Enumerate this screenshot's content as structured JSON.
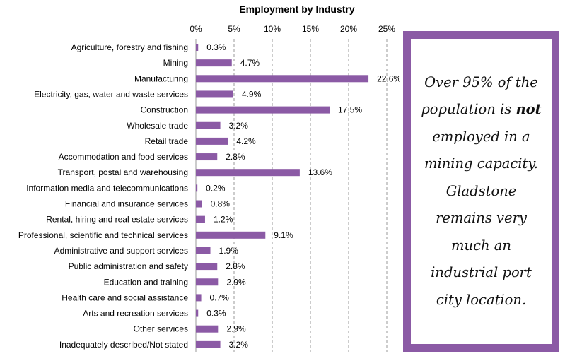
{
  "chart_data": {
    "type": "bar",
    "orientation": "horizontal",
    "title": "Employment by Industry",
    "categories": [
      "Agriculture, forestry and fishing",
      "Mining",
      "Manufacturing",
      "Electricity, gas, water and waste services",
      "Construction",
      "Wholesale trade",
      "Retail trade",
      "Accommodation and food services",
      "Transport, postal and warehousing",
      "Information media and telecommunications",
      "Financial and insurance services",
      "Rental, hiring and real estate services",
      "Professional, scientific and technical services",
      "Administrative and support services",
      "Public administration and safety",
      "Education and training",
      "Health care and social assistance",
      "Arts and recreation services",
      "Other services",
      "Inadequately described/Not stated"
    ],
    "values": [
      0.3,
      4.7,
      22.6,
      4.9,
      17.5,
      3.2,
      4.2,
      2.8,
      13.6,
      0.2,
      0.8,
      1.2,
      9.1,
      1.9,
      2.8,
      2.9,
      0.7,
      0.3,
      2.9,
      3.2
    ],
    "value_labels": [
      "0.3%",
      "4.7%",
      "22.6%",
      "4.9%",
      "17.5%",
      "3.2%",
      "4.2%",
      "2.8%",
      "13.6%",
      "0.2%",
      "0.8%",
      "1.2%",
      "9.1%",
      "1.9%",
      "2.8%",
      "2.9%",
      "0.7%",
      "0.3%",
      "2.9%",
      "3.2%"
    ],
    "xlim": [
      0,
      25
    ],
    "xticks": [
      0,
      5,
      10,
      15,
      20,
      25
    ],
    "xtick_labels": [
      "0%",
      "5%",
      "10%",
      "15%",
      "20%",
      "25%"
    ],
    "axis_position": "top",
    "grid": "vertical dashed",
    "bar_color": "#8b5aa5"
  },
  "callout": {
    "lines": [
      [
        "Over 95% of the"
      ],
      [
        "population is ",
        "not"
      ],
      [
        "employed in a"
      ],
      [
        "mining capacity."
      ],
      [
        "Gladstone"
      ],
      [
        "remains very"
      ],
      [
        "much an"
      ],
      [
        "industrial port"
      ],
      [
        "city location."
      ]
    ],
    "frame_color": "#8b5aa5"
  }
}
